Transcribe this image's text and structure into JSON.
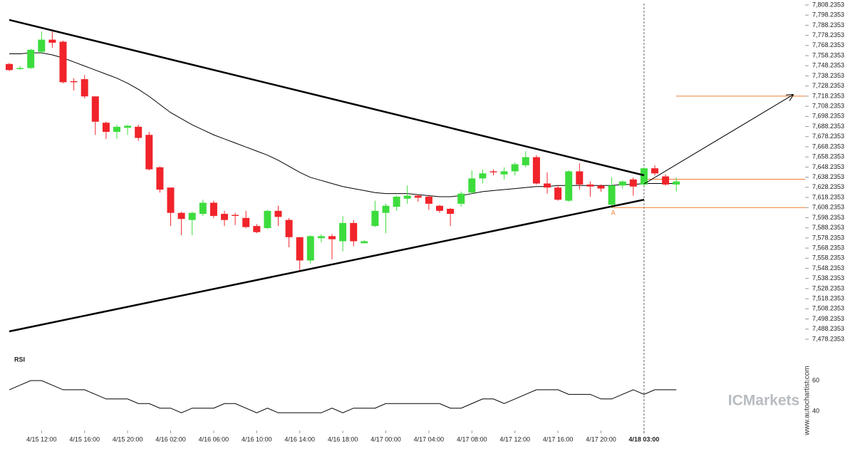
{
  "chart_data": {
    "type": "candlestick",
    "categories": [
      null,
      null,
      null,
      "4/15 12:00",
      null,
      null,
      null,
      "4/15 16:00",
      null,
      null,
      null,
      "4/15 20:00",
      null,
      null,
      null,
      "4/16 02:00",
      null,
      null,
      null,
      "4/16 06:00",
      null,
      null,
      null,
      "4/16 10:00",
      null,
      null,
      null,
      "4/16 14:00",
      null,
      null,
      null,
      "4/16 18:00",
      null,
      null,
      null,
      "4/17 00:00",
      null,
      null,
      null,
      "4/17 04:00",
      null,
      null,
      null,
      "4/17 08:00",
      null,
      null,
      null,
      "4/17 12:00",
      null,
      null,
      null,
      "4/17 16:00",
      null,
      null,
      null,
      "4/17 20:00",
      null,
      null,
      null,
      "4/18 03:00",
      null,
      null,
      null
    ],
    "open": [
      7750,
      7745,
      7746,
      7762,
      7774,
      7772,
      7733,
      7735,
      7718,
      7692,
      7683,
      7687,
      7688,
      7680,
      7648,
      7628,
      7603,
      7596,
      7602,
      7613,
      7602,
      7601,
      7598,
      7590,
      7588,
      7605,
      7596,
      7579,
      7556,
      7578,
      7580,
      7575,
      7593,
      7573,
      7590,
      7603,
      7609,
      7617,
      7620,
      7619,
      7610,
      7607,
      7612,
      7623,
      7637,
      7644,
      7641,
      7644,
      7650,
      7658,
      7632,
      7628,
      7615,
      7644,
      7631,
      7630,
      7611,
      7630,
      7636,
      7631,
      7647,
      7639,
      7631
    ],
    "high": [
      7751,
      7748,
      7765,
      7782,
      7782,
      7773,
      7736,
      7739,
      7718,
      7693,
      7690,
      7690,
      7690,
      7683,
      7649,
      7628,
      7604,
      7604,
      7616,
      7615,
      7605,
      7603,
      7605,
      7592,
      7606,
      7610,
      7598,
      7579,
      7581,
      7582,
      7582,
      7600,
      7596,
      7576,
      7615,
      7612,
      7620,
      7630,
      7621,
      7620,
      7611,
      7608,
      7624,
      7645,
      7646,
      7646,
      7648,
      7653,
      7664,
      7660,
      7643,
      7630,
      7645,
      7652,
      7634,
      7631,
      7638,
      7635,
      7638,
      7648,
      7650,
      7641,
      7638
    ],
    "low": [
      7743,
      7744,
      7745,
      7760,
      7766,
      7731,
      7724,
      7716,
      7680,
      7676,
      7676,
      7680,
      7674,
      7645,
      7623,
      7590,
      7581,
      7581,
      7600,
      7598,
      7590,
      7591,
      7588,
      7583,
      7587,
      7590,
      7569,
      7545,
      7553,
      7574,
      7557,
      7565,
      7570,
      7573,
      7589,
      7583,
      7605,
      7612,
      7614,
      7606,
      7603,
      7590,
      7609,
      7622,
      7632,
      7640,
      7636,
      7640,
      7648,
      7631,
      7622,
      7615,
      7614,
      7626,
      7619,
      7624,
      7608,
      7627,
      7620,
      7630,
      7640,
      7630,
      7624
    ],
    "close": [
      7744,
      7746,
      7764,
      7774,
      7771,
      7732,
      7732,
      7718,
      7693,
      7683,
      7688,
      7689,
      7677,
      7646,
      7626,
      7603,
      7597,
      7603,
      7613,
      7600,
      7596,
      7600,
      7589,
      7584,
      7605,
      7599,
      7579,
      7556,
      7580,
      7580,
      7577,
      7593,
      7575,
      7575,
      7605,
      7610,
      7619,
      7620,
      7618,
      7612,
      7605,
      7602,
      7622,
      7637,
      7642,
      7643,
      7644,
      7651,
      7658,
      7632,
      7628,
      7616,
      7644,
      7631,
      7629,
      7627,
      7630,
      7634,
      7629,
      7647,
      7642,
      7631,
      7634
    ],
    "up_color": "#3ddc3d",
    "down_color": "#f0242a",
    "moving_average": [
      7760,
      7760,
      7761,
      7761,
      7759,
      7756,
      7752,
      7748,
      7744,
      7740,
      7736,
      7731,
      7725,
      7718,
      7710,
      7702,
      7696,
      7690,
      7685,
      7680,
      7676,
      7672,
      7668,
      7664,
      7660,
      7655,
      7649,
      7643,
      7638,
      7635,
      7632,
      7629,
      7627,
      7625,
      7623,
      7622,
      7622,
      7622,
      7621,
      7620,
      7619,
      7619,
      7620,
      7622,
      7624,
      7625,
      7626,
      7627,
      7628,
      7629,
      7629,
      7630,
      7630,
      7630,
      7630,
      7630,
      7630,
      7631,
      7631,
      7632,
      7632,
      7632,
      7632
    ],
    "trendlines": [
      [
        7793.5,
        7640.1
      ],
      [
        7486,
        7616
      ]
    ],
    "projection": [
      7631.6,
      7719.6
    ],
    "levels": [
      7718.2353,
      7636.2353,
      7608.2353
    ],
    "level_color": "#f07c30",
    "annotation": "A",
    "ylim": [
      7478.2353,
      7808.2353
    ],
    "yticks": [
      {
        "value": 7808.2353,
        "label": "7,808.2353"
      },
      {
        "value": 7798.2353,
        "label": "7,798.2353"
      },
      {
        "value": 7788.2353,
        "label": "7,788.2353"
      },
      {
        "value": 7778.2353,
        "label": "7,778.2353"
      },
      {
        "value": 7768.2353,
        "label": "7,768.2353"
      },
      {
        "value": 7758.2353,
        "label": "7,758.2353"
      },
      {
        "value": 7748.2353,
        "label": "7,748.2353"
      },
      {
        "value": 7738.2353,
        "label": "7,738.2353"
      },
      {
        "value": 7728.2353,
        "label": "7,728.2353"
      },
      {
        "value": 7718.2353,
        "label": "7,718.2353"
      },
      {
        "value": 7708.2353,
        "label": "7,708.2353"
      },
      {
        "value": 7698.2353,
        "label": "7,698.2353"
      },
      {
        "value": 7688.2353,
        "label": "7,688.2353"
      },
      {
        "value": 7678.2353,
        "label": "7,678.2353"
      },
      {
        "value": 7668.2353,
        "label": "7,668.2353"
      },
      {
        "value": 7658.2353,
        "label": "7,658.2353"
      },
      {
        "value": 7648.2353,
        "label": "7,648.2353"
      },
      {
        "value": 7638.2353,
        "label": "7,638.2353"
      },
      {
        "value": 7628.2353,
        "label": "7,628.2353"
      },
      {
        "value": 7618.2353,
        "label": "7,618.2353"
      },
      {
        "value": 7608.2353,
        "label": "7,608.2353"
      },
      {
        "value": 7598.2353,
        "label": "7,598.2353"
      },
      {
        "value": 7588.2353,
        "label": "7,588.2353"
      },
      {
        "value": 7578.2353,
        "label": "7,578.2353"
      },
      {
        "value": 7568.2353,
        "label": "7,568.2353"
      },
      {
        "value": 7558.2353,
        "label": "7,558.2353"
      },
      {
        "value": 7548.2353,
        "label": "7,548.2353"
      },
      {
        "value": 7538.2353,
        "label": "7,538.2353"
      },
      {
        "value": 7528.2353,
        "label": "7,528.2353"
      },
      {
        "value": 7518.2353,
        "label": "7,518.2353"
      },
      {
        "value": 7508.2353,
        "label": "7,508.2353"
      },
      {
        "value": 7498.2353,
        "label": "7,498.2353"
      },
      {
        "value": 7488.2353,
        "label": "7,488.2353"
      },
      {
        "value": 7478.2353,
        "label": "7,478.2353"
      }
    ],
    "rsi": {
      "title": "RSI",
      "values": [
        54,
        57,
        60,
        60,
        57,
        54,
        54,
        54,
        51,
        48,
        48,
        48,
        45,
        45,
        42,
        42,
        39,
        42,
        42,
        42,
        45,
        45,
        42,
        39,
        42,
        39,
        39,
        39,
        39,
        39,
        42,
        39,
        42,
        42,
        42,
        45,
        45,
        45,
        45,
        45,
        45,
        42,
        42,
        45,
        48,
        48,
        45,
        48,
        51,
        54,
        54,
        54,
        51,
        51,
        51,
        48,
        48,
        51,
        54,
        51,
        54,
        54,
        54
      ],
      "ylim": [
        30,
        75
      ],
      "yticks": [
        40,
        60
      ]
    },
    "watermark": "ICMarkets",
    "site": "www.autochartist.com"
  }
}
